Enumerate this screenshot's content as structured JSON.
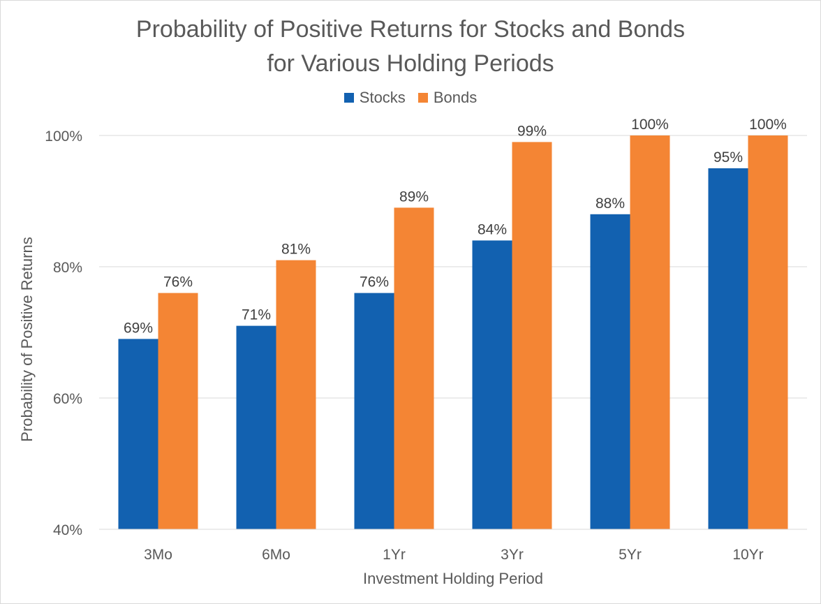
{
  "chart_data": {
    "type": "bar",
    "title_line1": "Probability of Positive Returns for Stocks and Bonds",
    "title_line2": "for Various Holding Periods",
    "xlabel": "Investment Holding Period",
    "ylabel": "Probability of Positive Returns",
    "categories": [
      "3Mo",
      "6Mo",
      "1Yr",
      "3Yr",
      "5Yr",
      "10Yr"
    ],
    "series": [
      {
        "name": "Stocks",
        "color": "#1261b0",
        "values": [
          69,
          71,
          76,
          84,
          88,
          95
        ],
        "labels": [
          "69%",
          "71%",
          "76%",
          "84%",
          "88%",
          "95%"
        ]
      },
      {
        "name": "Bonds",
        "color": "#f48534",
        "values": [
          76,
          81,
          89,
          99,
          100,
          100
        ],
        "labels": [
          "76%",
          "81%",
          "89%",
          "99%",
          "100%",
          "100%"
        ]
      }
    ],
    "ylim": [
      40,
      100
    ],
    "yticks": [
      40,
      60,
      80,
      100
    ],
    "ytick_labels": [
      "40%",
      "60%",
      "80%",
      "100%"
    ],
    "grid": true,
    "legend_position": "top-center"
  }
}
